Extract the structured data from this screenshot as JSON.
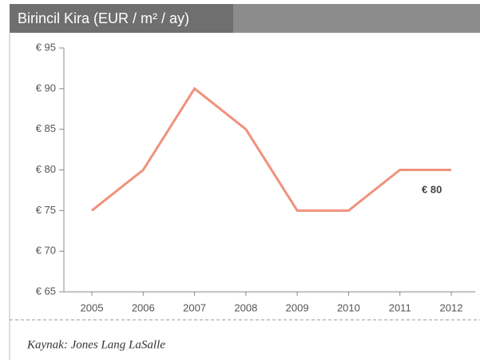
{
  "chart_data": {
    "type": "line",
    "title": "Birincil Kira (EUR / m² / ay)",
    "categories": [
      "2005",
      "2006",
      "2007",
      "2008",
      "2009",
      "2010",
      "2011",
      "2012"
    ],
    "series": [
      {
        "name": "Birincil Kira",
        "color": "#f0917c",
        "values": [
          75,
          80,
          90,
          85,
          75,
          75,
          80,
          80
        ]
      }
    ],
    "ylim": [
      65,
      95
    ],
    "yticks": [
      {
        "value": 65,
        "label": "€ 65"
      },
      {
        "value": 70,
        "label": "€ 70"
      },
      {
        "value": 75,
        "label": "€ 75"
      },
      {
        "value": 80,
        "label": "€ 80"
      },
      {
        "value": 85,
        "label": "€ 85"
      },
      {
        "value": 90,
        "label": "€ 90"
      },
      {
        "value": 95,
        "label": "€ 95"
      }
    ],
    "annotation": "€ 80",
    "source": "Kaynak: Jones Lang LaSalle"
  }
}
